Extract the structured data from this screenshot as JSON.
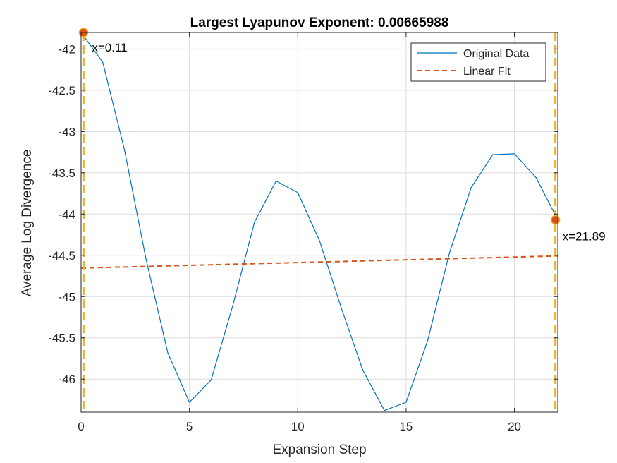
{
  "chart_data": {
    "type": "line",
    "title": "Largest Lyapunov Exponent: 0.00665988",
    "xlabel": "Expansion Step",
    "ylabel": "Average Log Divergence",
    "xlim": [
      0,
      22
    ],
    "ylim": [
      -46.4,
      -41.8
    ],
    "xticks": [
      0,
      5,
      10,
      15,
      20
    ],
    "yticks": [
      -42,
      -42.5,
      -43,
      -43.5,
      -44,
      -44.5,
      -45,
      -45.5,
      -46
    ],
    "xtick_labels": [
      "0",
      "5",
      "10",
      "15",
      "20"
    ],
    "ytick_labels": [
      "-42",
      "-42.5",
      "-43",
      "-43.5",
      "-44",
      "-44.5",
      "-45",
      "-45.5",
      "-46"
    ],
    "grid": true,
    "legend_position": "top-right",
    "series": [
      {
        "name": "Original Data",
        "style": "solid",
        "color": "#0072BD",
        "x": [
          0,
          1,
          2,
          3,
          4,
          5,
          6,
          7,
          8,
          9,
          10,
          11,
          12,
          13,
          14,
          15,
          16,
          17,
          18,
          19,
          20,
          21,
          22
        ],
        "y": [
          -41.8,
          -42.16,
          -43.22,
          -44.55,
          -45.68,
          -46.28,
          -46.01,
          -45.11,
          -44.1,
          -43.6,
          -43.74,
          -44.32,
          -45.13,
          -45.89,
          -46.38,
          -46.28,
          -45.53,
          -44.47,
          -43.68,
          -43.28,
          -43.27,
          -43.56,
          -44.07
        ]
      },
      {
        "name": "Linear Fit",
        "style": "dashed",
        "color": "#D95319",
        "x": [
          0,
          22
        ],
        "y": [
          -44.655,
          -44.508
        ]
      }
    ],
    "vertical_lines": [
      {
        "x": 0.11,
        "color": "#EDB120"
      },
      {
        "x": 21.89,
        "color": "#EDB120"
      }
    ],
    "markers": [
      {
        "x": 0.11,
        "y": -41.8,
        "label": "x=0.11"
      },
      {
        "x": 21.89,
        "y": -44.07,
        "label": "x=21.89"
      }
    ],
    "marker_color": "#D95319",
    "marker_edge": "#EDB120"
  }
}
